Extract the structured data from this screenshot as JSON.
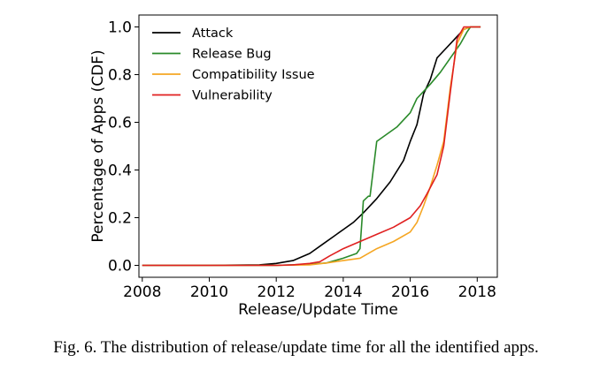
{
  "caption": "Fig. 6.  The distribution of release/update time for all the identified apps.",
  "chart_data": {
    "type": "line",
    "title": "",
    "xlabel": "Release/Update Time",
    "ylabel": "Percentage of Apps (CDF)",
    "xlim": [
      2007.9,
      2018.6
    ],
    "ylim": [
      -0.05,
      1.05
    ],
    "xticks": [
      2008,
      2010,
      2012,
      2014,
      2016,
      2018
    ],
    "xtick_labels": [
      "2008",
      "2010",
      "2012",
      "2014",
      "2016",
      "2018"
    ],
    "yticks": [
      0.0,
      0.2,
      0.4,
      0.6,
      0.8,
      1.0
    ],
    "ytick_labels": [
      "0.0",
      "0.2",
      "0.4",
      "0.6",
      "0.8",
      "1.0"
    ],
    "grid": false,
    "legend_position": "top-left",
    "series": [
      {
        "name": "Attack",
        "color": "#000000",
        "x": [
          2008.0,
          2010.0,
          2011.5,
          2012.0,
          2012.5,
          2013.0,
          2013.4,
          2013.7,
          2014.0,
          2014.3,
          2014.6,
          2015.0,
          2015.4,
          2015.8,
          2016.0,
          2016.2,
          2016.4,
          2016.6,
          2016.8,
          2017.0,
          2017.2,
          2017.4,
          2017.6,
          2017.8,
          2018.0,
          2018.1
        ],
        "y": [
          0.0,
          0.0,
          0.002,
          0.008,
          0.02,
          0.05,
          0.09,
          0.12,
          0.15,
          0.18,
          0.22,
          0.28,
          0.35,
          0.44,
          0.52,
          0.59,
          0.72,
          0.78,
          0.87,
          0.9,
          0.93,
          0.96,
          0.99,
          1.0,
          1.0,
          1.0
        ]
      },
      {
        "name": "Release Bug",
        "color": "#2a8a2a",
        "x": [
          2008.0,
          2012.0,
          2013.0,
          2013.5,
          2014.0,
          2014.4,
          2014.5,
          2014.6,
          2014.75,
          2014.8,
          2015.0,
          2015.3,
          2015.6,
          2016.0,
          2016.2,
          2016.4,
          2016.6,
          2016.9,
          2017.2,
          2017.5,
          2017.7,
          2017.8,
          2018.1
        ],
        "y": [
          0.0,
          0.0,
          0.005,
          0.01,
          0.03,
          0.05,
          0.07,
          0.27,
          0.29,
          0.29,
          0.52,
          0.55,
          0.58,
          0.64,
          0.7,
          0.73,
          0.76,
          0.81,
          0.87,
          0.93,
          0.98,
          1.0,
          1.0
        ]
      },
      {
        "name": "Compatibility Issue",
        "color": "#f5a623",
        "x": [
          2008.0,
          2012.0,
          2013.0,
          2013.5,
          2014.0,
          2014.5,
          2015.0,
          2015.5,
          2016.0,
          2016.2,
          2016.4,
          2016.6,
          2016.8,
          2017.0,
          2017.2,
          2017.4,
          2017.6,
          2017.8,
          2018.1
        ],
        "y": [
          0.0,
          0.0,
          0.002,
          0.01,
          0.02,
          0.03,
          0.07,
          0.1,
          0.14,
          0.18,
          0.25,
          0.33,
          0.42,
          0.52,
          0.75,
          0.93,
          0.99,
          1.0,
          1.0
        ]
      },
      {
        "name": "Vulnerability",
        "color": "#e02020",
        "x": [
          2008.0,
          2012.0,
          2012.5,
          2013.0,
          2013.3,
          2013.6,
          2014.0,
          2014.5,
          2015.0,
          2015.5,
          2016.0,
          2016.3,
          2016.5,
          2016.8,
          2017.0,
          2017.2,
          2017.4,
          2017.6,
          2017.8,
          2018.1
        ],
        "y": [
          0.0,
          0.0,
          0.002,
          0.008,
          0.015,
          0.04,
          0.07,
          0.1,
          0.13,
          0.16,
          0.2,
          0.25,
          0.3,
          0.38,
          0.5,
          0.73,
          0.95,
          1.0,
          1.0,
          1.0
        ]
      }
    ]
  }
}
